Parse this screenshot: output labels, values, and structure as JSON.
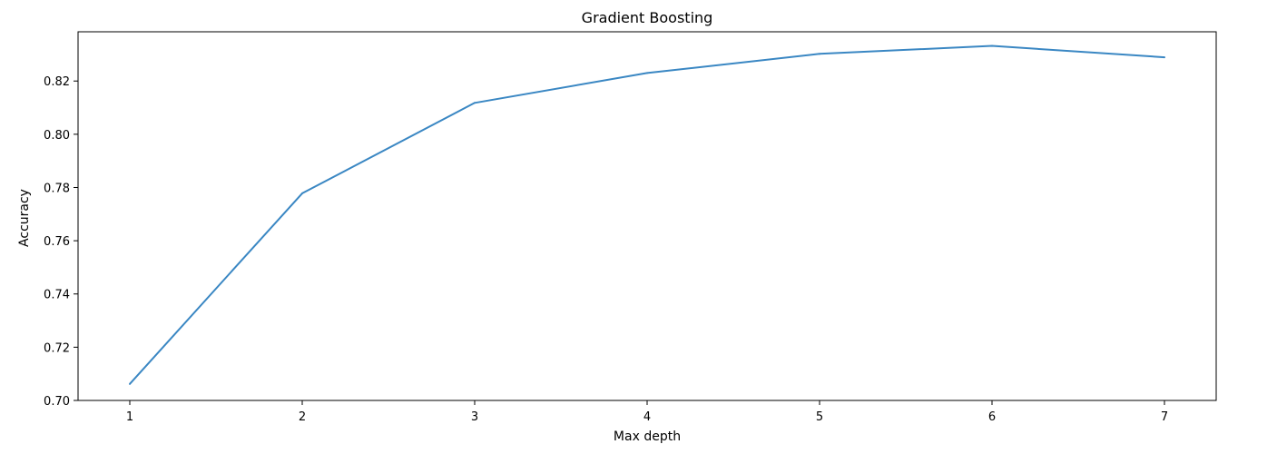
{
  "chart_data": {
    "type": "line",
    "title": "Gradient Boosting",
    "xlabel": "Max depth",
    "ylabel": "Accuracy",
    "x": [
      1,
      2,
      3,
      4,
      5,
      6,
      7
    ],
    "xticks": [
      "1",
      "2",
      "3",
      "4",
      "5",
      "6",
      "7"
    ],
    "yticks": [
      "0.70",
      "0.72",
      "0.74",
      "0.76",
      "0.78",
      "0.80",
      "0.82"
    ],
    "ytick_values": [
      0.7,
      0.72,
      0.74,
      0.76,
      0.78,
      0.8,
      0.82
    ],
    "xlim": [
      0.7,
      7.3
    ],
    "ylim": [
      0.7,
      0.8385
    ],
    "grid": false,
    "series": [
      {
        "name": "Accuracy",
        "color": "#3a87c3",
        "values": [
          0.7062,
          0.7778,
          0.8118,
          0.823,
          0.8302,
          0.8332,
          0.8289
        ]
      }
    ]
  }
}
